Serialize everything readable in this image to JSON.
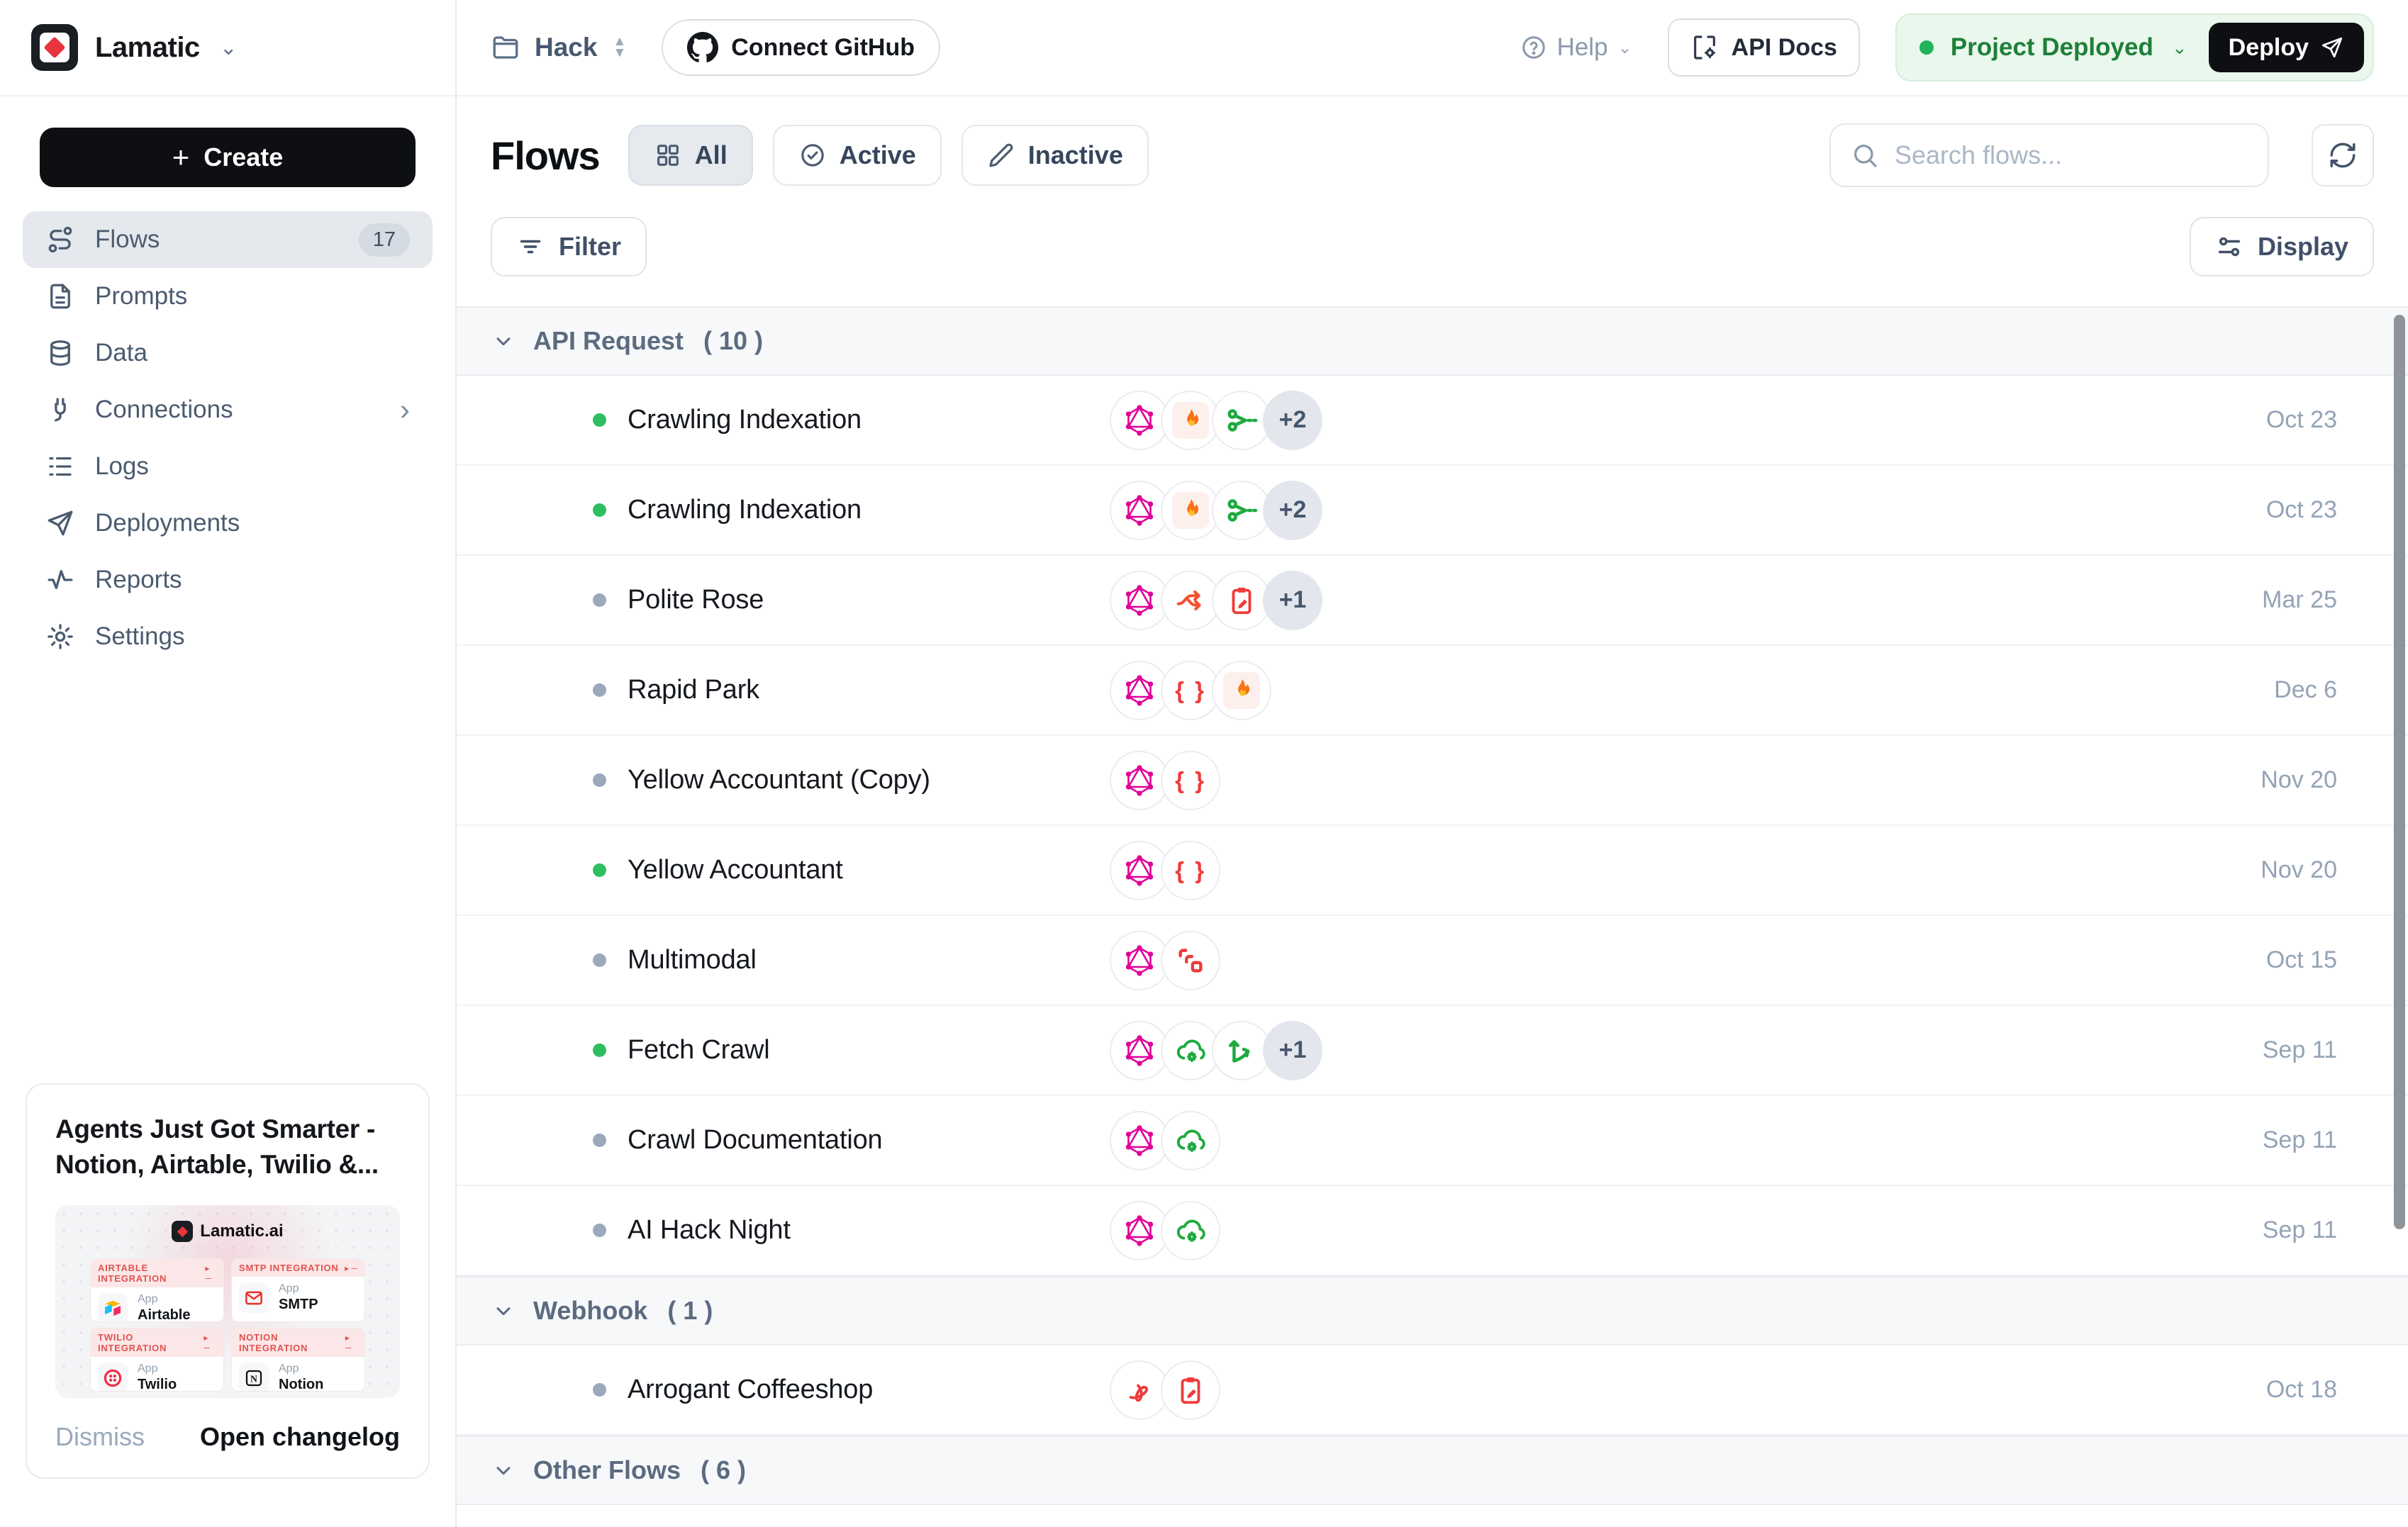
{
  "brand": {
    "name": "Lamatic"
  },
  "sidebar": {
    "create_label": "Create",
    "items": [
      {
        "label": "Flows",
        "icon": "flow-icon",
        "badge": "17",
        "active": true
      },
      {
        "label": "Prompts",
        "icon": "document-icon"
      },
      {
        "label": "Data",
        "icon": "database-icon"
      },
      {
        "label": "Connections",
        "icon": "plug-icon",
        "chevron": true
      },
      {
        "label": "Logs",
        "icon": "list-icon"
      },
      {
        "label": "Deployments",
        "icon": "paper-plane-icon"
      },
      {
        "label": "Reports",
        "icon": "activity-icon"
      },
      {
        "label": "Settings",
        "icon": "gear-icon"
      }
    ],
    "promo": {
      "title": "Agents Just Got Smarter - Notion, Airtable, Twilio &...",
      "logo_text": "Lamatic.ai",
      "apps": [
        {
          "tag": "AIRTABLE INTEGRATION",
          "kind": "App",
          "name": "Airtable",
          "icon": "airtable-icon"
        },
        {
          "tag": "SMTP INTEGRATION",
          "kind": "App",
          "name": "SMTP",
          "icon": "smtp-icon"
        },
        {
          "tag": "TWILIO INTEGRATION",
          "kind": "App",
          "name": "Twilio",
          "icon": "twilio-icon"
        },
        {
          "tag": "NOTION INTEGRATION",
          "kind": "App",
          "name": "Notion",
          "icon": "notion-icon"
        }
      ],
      "dismiss_label": "Dismiss",
      "changelog_label": "Open changelog"
    }
  },
  "topbar": {
    "project_name": "Hack",
    "connect_github_label": "Connect GitHub",
    "help_label": "Help",
    "api_docs_label": "API Docs",
    "deploy_status": "Project Deployed",
    "deploy_label": "Deploy",
    "status_color": "#22b35b"
  },
  "header": {
    "title": "Flows",
    "tabs": [
      {
        "label": "All",
        "icon": "grid-icon",
        "active": true
      },
      {
        "label": "Active",
        "icon": "check-circle-icon",
        "active": false
      },
      {
        "label": "Inactive",
        "icon": "pencil-icon",
        "active": false
      }
    ],
    "search_placeholder": "Search flows...",
    "filter_label": "Filter",
    "display_label": "Display"
  },
  "colors": {
    "active_dot": "#2fbe5f",
    "inactive_dot": "#9aa9bc",
    "graphql_pink": "#e10098",
    "deployed_green": "#1e7f39"
  },
  "sections": [
    {
      "name": "API Request",
      "count_label": "( 10 )",
      "rows": [
        {
          "name": "Crawling Indexation",
          "status": "active",
          "icons": [
            "graphql-icon",
            "fire-icon",
            "scissors-icon"
          ],
          "extra": "+2",
          "date": "Oct 23"
        },
        {
          "name": "Crawling Indexation",
          "status": "active",
          "icons": [
            "graphql-icon",
            "fire-icon",
            "scissors-icon"
          ],
          "extra": "+2",
          "date": "Oct 23"
        },
        {
          "name": "Polite Rose",
          "status": "inactive",
          "icons": [
            "graphql-icon",
            "split-icon",
            "clipboard-icon"
          ],
          "extra": "+1",
          "date": "Mar 25"
        },
        {
          "name": "Rapid Park",
          "status": "inactive",
          "icons": [
            "graphql-icon",
            "braces-icon",
            "fire-icon"
          ],
          "extra": null,
          "date": "Dec 6"
        },
        {
          "name": "Yellow Accountant (Copy)",
          "status": "inactive",
          "icons": [
            "graphql-icon",
            "braces-icon"
          ],
          "extra": null,
          "date": "Nov 20"
        },
        {
          "name": "Yellow Accountant",
          "status": "active",
          "icons": [
            "graphql-icon",
            "braces-icon"
          ],
          "extra": null,
          "date": "Nov 20"
        },
        {
          "name": "Multimodal",
          "status": "inactive",
          "icons": [
            "graphql-icon",
            "copies-icon"
          ],
          "extra": null,
          "date": "Oct 15"
        },
        {
          "name": "Fetch Crawl",
          "status": "active",
          "icons": [
            "graphql-icon",
            "cloud-gear-icon",
            "axes-icon"
          ],
          "extra": "+1",
          "date": "Sep 11"
        },
        {
          "name": "Crawl Documentation",
          "status": "inactive",
          "icons": [
            "graphql-icon",
            "cloud-gear-icon"
          ],
          "extra": null,
          "date": "Sep 11"
        },
        {
          "name": "AI Hack Night",
          "status": "inactive",
          "icons": [
            "graphql-icon",
            "cloud-gear-icon"
          ],
          "extra": null,
          "date": "Sep 11"
        }
      ]
    },
    {
      "name": "Webhook",
      "count_label": "( 1 )",
      "rows": [
        {
          "name": "Arrogant Coffeeshop",
          "status": "inactive",
          "icons": [
            "pdf-icon",
            "clipboard-icon"
          ],
          "extra": null,
          "date": "Oct 18"
        }
      ]
    },
    {
      "name": "Other Flows",
      "count_label": "( 6 )",
      "rows": []
    }
  ]
}
